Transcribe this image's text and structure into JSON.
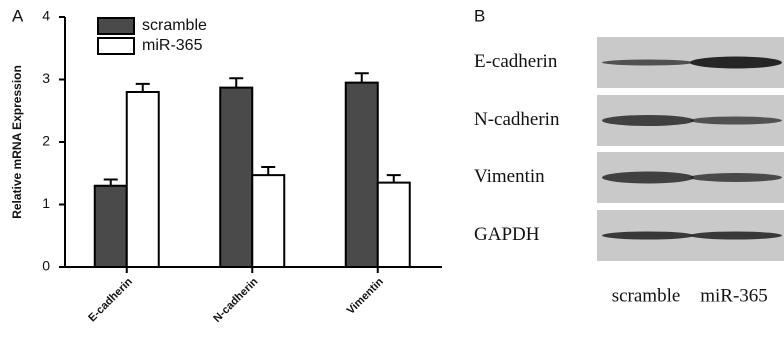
{
  "panel_labels": [
    "A",
    "B"
  ],
  "chart_data": {
    "type": "bar",
    "y_label": "Relative mRNA Expression",
    "categories": [
      "E-cadherin",
      "N-cadherin",
      "Vimentin"
    ],
    "series": [
      {
        "name": "scramble",
        "color": "#4a4a4a",
        "values": [
          1.3,
          2.87,
          2.95
        ],
        "errors": [
          0.1,
          0.15,
          0.15
        ]
      },
      {
        "name": "miR-365",
        "color": "#ffffff",
        "values": [
          2.8,
          1.47,
          1.35
        ],
        "errors": [
          0.13,
          0.13,
          0.12
        ]
      }
    ],
    "ylim": [
      0,
      4
    ],
    "yticks": [
      0,
      1,
      2,
      3,
      4
    ],
    "grid": false
  },
  "blot": {
    "rows": [
      "E-cadherin",
      "N-cadherin",
      "Vimentin",
      "GAPDH"
    ],
    "lanes": [
      "scramble",
      "miR-365"
    ]
  }
}
